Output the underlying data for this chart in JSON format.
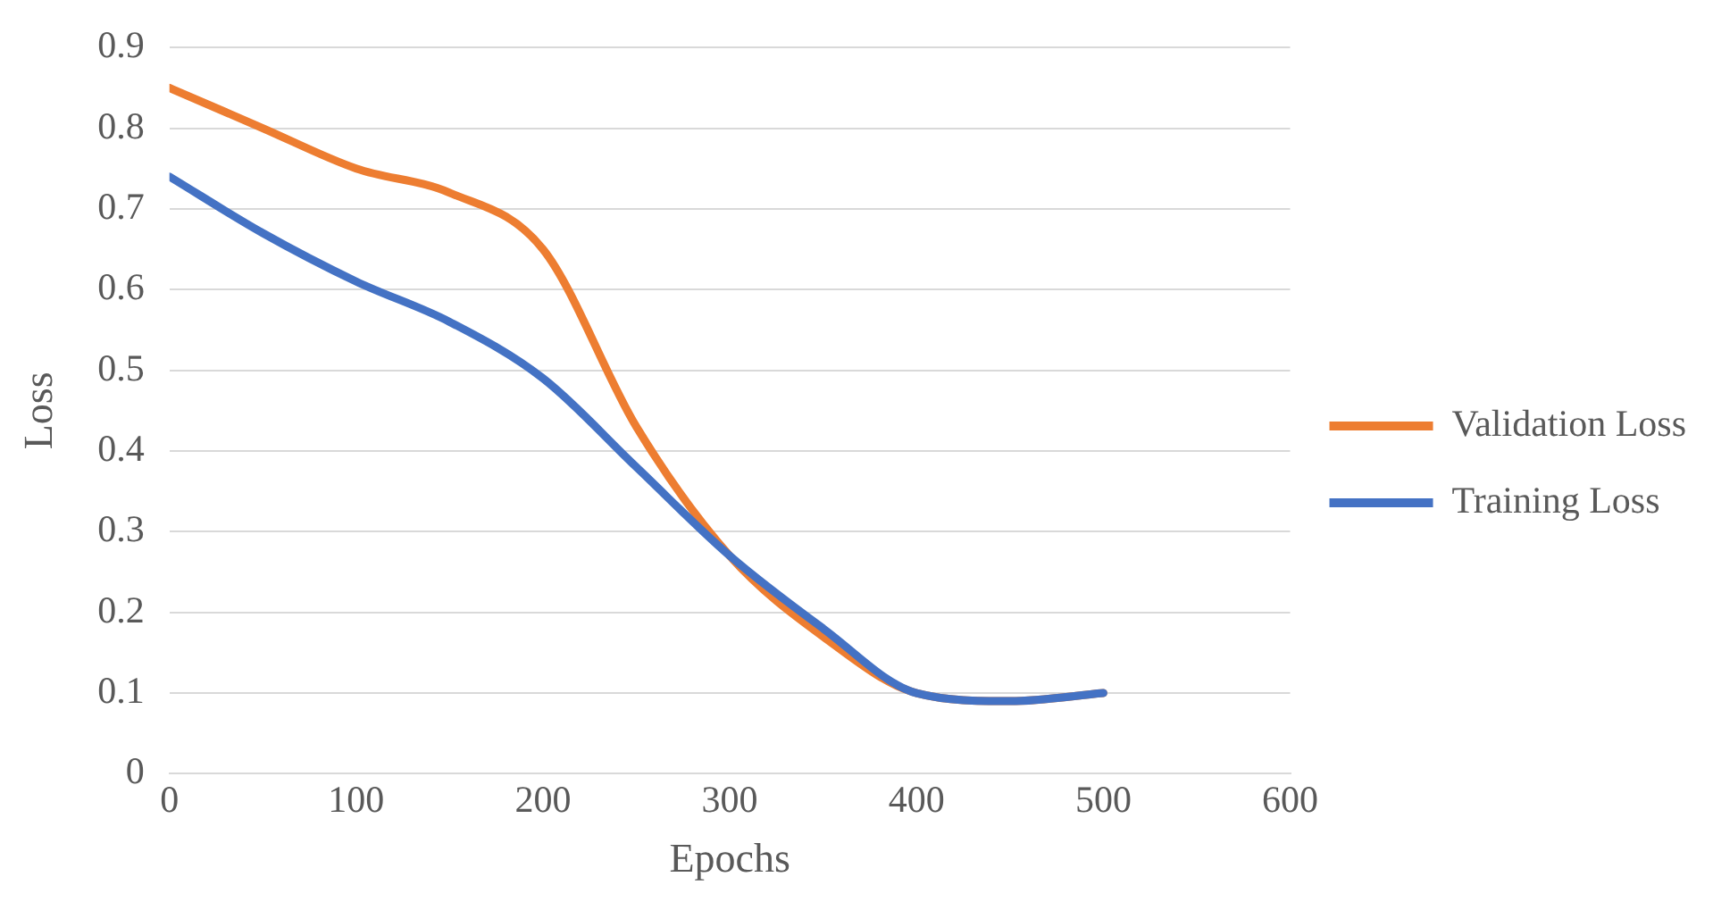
{
  "chart_data": {
    "type": "line",
    "xlabel": "Epochs",
    "ylabel": "Loss",
    "xlim": [
      0,
      600
    ],
    "xticks": [
      0,
      100,
      200,
      300,
      400,
      500,
      600
    ],
    "ylim": [
      0,
      0.9
    ],
    "yticks": [
      0,
      0.1,
      0.2,
      0.3,
      0.4,
      0.5,
      0.6,
      0.7,
      0.8,
      0.9
    ],
    "grid": "y",
    "legend": "right",
    "marker": "none",
    "line_style": "solid",
    "x": [
      0,
      50,
      100,
      150,
      200,
      250,
      300,
      350,
      400,
      450,
      500
    ],
    "series": [
      {
        "name": "Validation Loss",
        "color": "#ed7d31",
        "values": [
          0.85,
          0.8,
          0.75,
          0.72,
          0.65,
          0.43,
          0.27,
          0.17,
          0.1,
          0.09,
          0.1
        ]
      },
      {
        "name": "Training Loss",
        "color": "#4472c4",
        "values": [
          0.74,
          0.67,
          0.61,
          0.56,
          0.49,
          0.38,
          0.27,
          0.18,
          0.1,
          0.09,
          0.1
        ]
      }
    ]
  }
}
